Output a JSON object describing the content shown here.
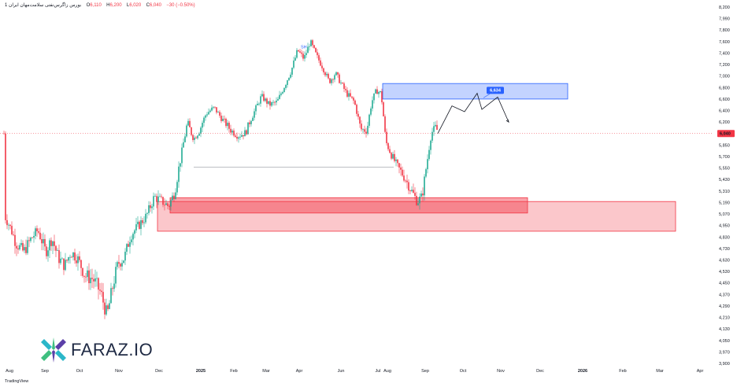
{
  "header": {
    "symbol": "بورس زاگرس‌نفتی سلامت‌مهان ایران 1",
    "open": "6,110",
    "high": "6,200",
    "low": "6,020",
    "close": "6,040",
    "change": "−30 (−0.50%)",
    "o_label": "O",
    "h_label": "H",
    "l_label": "L",
    "c_label": "C"
  },
  "brand": {
    "name": "FARAZ.IO",
    "tradingview": "TradingView"
  },
  "colors": {
    "up": "#22ab94",
    "down": "#f23645",
    "buy_zone": "#f23645",
    "sell_zone": "#2962ff"
  },
  "chart_data": {
    "type": "candlestick",
    "x_ticks": [
      "Aug",
      "Sep",
      "Oct",
      "Nov",
      "Dec",
      "2025",
      "Feb",
      "Mar",
      "Apr",
      "May",
      "Jun",
      "Jul",
      "Aug",
      "Sep",
      "Oct",
      "Nov",
      "Dec",
      "2026",
      "Feb",
      "Mar",
      "Apr"
    ],
    "y_ticks": [
      8200,
      7990,
      7800,
      7600,
      7400,
      7200,
      7000,
      6800,
      6600,
      6400,
      6200,
      6040,
      5850,
      5700,
      5550,
      5430,
      5310,
      5190,
      5070,
      4950,
      4830,
      4730,
      4630,
      4530,
      4450,
      4370,
      4290,
      4210,
      4130,
      4050,
      3970,
      3900
    ],
    "y_tick_labels": [
      "8,200",
      "7,990",
      "7,800",
      "7,600",
      "7,400",
      "7,200",
      "7,000",
      "6,800",
      "6,600",
      "6,400",
      "6,200",
      "6,040",
      "5,850",
      "5,700",
      "5,550",
      "5,430",
      "5,310",
      "5,190",
      "5,070",
      "4,950",
      "4,830",
      "4,730",
      "4,630",
      "4,530",
      "4,450",
      "4,370",
      "4,290",
      "4,210",
      "4,130",
      "4,050",
      "3,970",
      "3,900"
    ],
    "last_price": 6040,
    "last_price_label": "6,040",
    "annotations": {
      "target_label": "6,634",
      "swing_label": "SH",
      "support_line": 5560
    },
    "zones": [
      {
        "name": "sell-zone",
        "from": "Jul",
        "to": "Dec",
        "low": 6600,
        "high": 6870
      },
      {
        "name": "buy-zone-upper",
        "from": "Dec",
        "to": "Nov",
        "low": 5080,
        "high": 5240
      },
      {
        "name": "buy-zone-lower",
        "from": "Dec",
        "to": "Mar",
        "low": 4890,
        "high": 5200
      }
    ],
    "projection": [
      6040,
      6480,
      6380,
      6700,
      6420,
      6634,
      6200
    ]
  }
}
